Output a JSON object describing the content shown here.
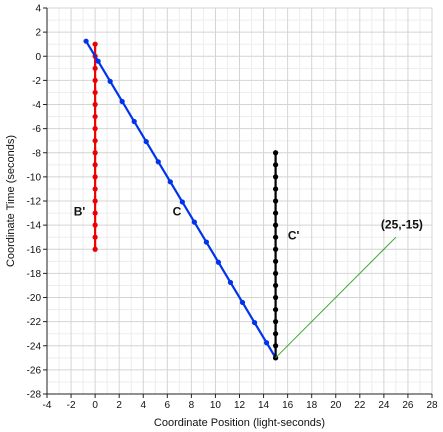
{
  "chart_data": {
    "type": "line",
    "xlabel": "Coordinate Position (light-seconds)",
    "ylabel": "Coordinate Time (seconds)",
    "xlim": [
      -4,
      28
    ],
    "ylim": [
      -28,
      4
    ],
    "x_ticks": [
      -4,
      -2,
      0,
      2,
      4,
      6,
      8,
      10,
      12,
      14,
      16,
      18,
      20,
      22,
      24,
      26,
      28
    ],
    "y_ticks": [
      4,
      2,
      0,
      -2,
      -4,
      -6,
      -8,
      -10,
      -12,
      -14,
      -16,
      -18,
      -20,
      -22,
      -24,
      -26,
      -28
    ],
    "grid": true,
    "legend": "none",
    "series": [
      {
        "color": "#ee0000",
        "marker": true,
        "points": [
          [
            0,
            1
          ],
          [
            0,
            0
          ],
          [
            0,
            -1
          ],
          [
            0,
            -2
          ],
          [
            0,
            -3
          ],
          [
            0,
            -4
          ],
          [
            0,
            -5
          ],
          [
            0,
            -6
          ],
          [
            0,
            -7
          ],
          [
            0,
            -8
          ],
          [
            0,
            -9
          ],
          [
            0,
            -10
          ],
          [
            0,
            -11
          ],
          [
            0,
            -12
          ],
          [
            0,
            -13
          ],
          [
            0,
            -14
          ],
          [
            0,
            -15
          ],
          [
            0,
            -16
          ]
        ]
      },
      {
        "color": "#0033ee",
        "marker": true,
        "points": [
          [
            -0.75,
            1.25
          ],
          [
            0.25,
            -0.41
          ],
          [
            1.25,
            -2.08
          ],
          [
            2.25,
            -3.75
          ],
          [
            3.25,
            -5.41
          ],
          [
            4.25,
            -7.08
          ],
          [
            5.25,
            -8.75
          ],
          [
            6.25,
            -10.41
          ],
          [
            7.25,
            -12.08
          ],
          [
            8.25,
            -13.75
          ],
          [
            9.25,
            -15.41
          ],
          [
            10.25,
            -17.08
          ],
          [
            11.25,
            -18.75
          ],
          [
            12.25,
            -20.41
          ],
          [
            13.25,
            -22.08
          ],
          [
            14.25,
            -23.75
          ],
          [
            15,
            -25
          ]
        ]
      },
      {
        "color": "#000000",
        "marker": true,
        "points": [
          [
            15,
            -8
          ],
          [
            15,
            -9
          ],
          [
            15,
            -10
          ],
          [
            15,
            -11
          ],
          [
            15,
            -12
          ],
          [
            15,
            -13
          ],
          [
            15,
            -14
          ],
          [
            15,
            -15
          ],
          [
            15,
            -16
          ],
          [
            15,
            -17
          ],
          [
            15,
            -18
          ],
          [
            15,
            -19
          ],
          [
            15,
            -20
          ],
          [
            15,
            -21
          ],
          [
            15,
            -22
          ],
          [
            15,
            -23
          ],
          [
            15,
            -24
          ],
          [
            15,
            -25
          ]
        ]
      },
      {
        "color": "#33aa33",
        "marker": false,
        "points": [
          [
            15,
            -25
          ],
          [
            25,
            -15
          ]
        ]
      }
    ],
    "annotations": [
      {
        "text": "B'",
        "x": -1.3,
        "y": -13.2
      },
      {
        "text": "C",
        "x": 6.8,
        "y": -13.2
      },
      {
        "text": "C'",
        "x": 16.5,
        "y": -15.2
      },
      {
        "text": "(25,-15)",
        "x": 25.5,
        "y": -14.3
      }
    ]
  }
}
